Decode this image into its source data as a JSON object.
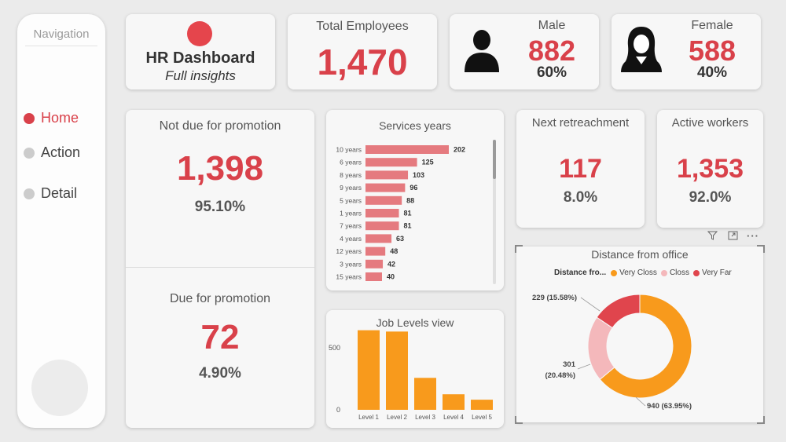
{
  "navigation": {
    "title": "Navigation",
    "items": [
      {
        "label": "Home",
        "active": true
      },
      {
        "label": "Action",
        "active": false
      },
      {
        "label": "Detail",
        "active": false
      }
    ]
  },
  "header": {
    "title": "HR Dashboard",
    "subtitle": "Full insights",
    "logo_color": "#e5454c"
  },
  "total_employees": {
    "label": "Total Employees",
    "value": "1,470"
  },
  "male": {
    "label": "Male",
    "value": "882",
    "percent": "60%",
    "icon": "male-user-icon"
  },
  "female": {
    "label": "Female",
    "value": "588",
    "percent": "40%",
    "icon": "female-user-icon"
  },
  "not_due_promotion": {
    "label": "Not due for promotion",
    "value": "1,398",
    "percent": "95.10%"
  },
  "due_promotion": {
    "label": "Due for promotion",
    "value": "72",
    "percent": "4.90%"
  },
  "next_retreachment": {
    "label": "Next retreachment",
    "value": "117",
    "percent": "8.0%"
  },
  "active_workers": {
    "label": "Active workers",
    "value": "1,353",
    "percent": "92.0%"
  },
  "visual_header_icons": [
    "filter-icon",
    "focus-mode-icon",
    "more-options-icon"
  ],
  "colors": {
    "accent": "#d9414a",
    "bar_service": "#e57a7f",
    "bar_levels": "#f89a1c"
  },
  "chart_data": [
    {
      "type": "bar",
      "orientation": "horizontal",
      "title": "Services years",
      "categories": [
        "10 years",
        "6 years",
        "8 years",
        "9 years",
        "5 years",
        "1 years",
        "7 years",
        "4 years",
        "12 years",
        "3 years",
        "15 years"
      ],
      "values": [
        202,
        125,
        103,
        96,
        88,
        81,
        81,
        63,
        48,
        42,
        40
      ],
      "data_labels": [
        "202",
        "125",
        "103",
        "96",
        "88",
        "81",
        "81",
        "63",
        "48",
        "42",
        "40"
      ],
      "xlim": [
        0,
        202
      ]
    },
    {
      "type": "bar",
      "title": "Job Levels view",
      "categories": [
        "Level 1",
        "Level 2",
        "Level 3",
        "Level 4",
        "Level 5"
      ],
      "values": [
        543,
        534,
        218,
        106,
        69
      ],
      "y_ticks": [
        "500",
        "0"
      ],
      "ylim": [
        0,
        600
      ]
    },
    {
      "type": "pie",
      "donut": true,
      "title": "Distance from office",
      "legend_title": "Distance fro...",
      "legend_position": "top",
      "series": [
        {
          "name": "Very Closs",
          "value": 940,
          "label": "940 (63.95%)",
          "color": "#f89a1c"
        },
        {
          "name": "Closs",
          "value": 301,
          "label": "301 (20.48%)",
          "color": "#f4b8bb"
        },
        {
          "name": "Very Far",
          "value": 229,
          "label": "229 (15.58%)",
          "color": "#e0454d"
        }
      ]
    }
  ]
}
